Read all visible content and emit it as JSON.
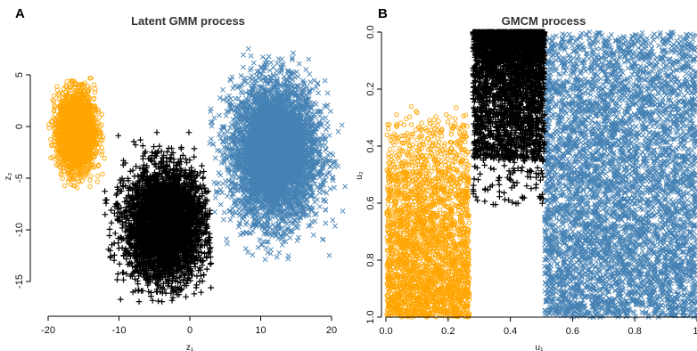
{
  "chart_data": [
    {
      "panel_letter": "A",
      "title": "Latent GMM process",
      "type": "scatter",
      "xlabel": "z₁",
      "ylabel": "z₂",
      "xlim": [
        -22,
        22
      ],
      "ylim": [
        -18,
        8
      ],
      "xticks": [
        -20,
        -10,
        0,
        10,
        20
      ],
      "xtick_labels": [
        "-20",
        "-10",
        "0",
        "10",
        "20"
      ],
      "yticks": [
        5,
        0,
        -5,
        -10,
        -15
      ],
      "ytick_labels": [
        "5",
        "0",
        "-5",
        "-10",
        "-15"
      ],
      "grid": false,
      "clusters": [
        {
          "marker": "circle",
          "color": "#FFA500",
          "mean": [
            -16,
            -0.5
          ],
          "sd": [
            1.3,
            1.9
          ],
          "approx_range_x": [
            -20,
            -12
          ],
          "approx_range_y": [
            -6,
            5
          ]
        },
        {
          "marker": "x",
          "color": "#4682B4",
          "mean": [
            12,
            -2.5
          ],
          "sd": [
            3.0,
            3.3
          ],
          "approx_range_x": [
            2,
            22
          ],
          "approx_range_y": [
            -13,
            8
          ]
        },
        {
          "marker": "plus",
          "color": "#000000",
          "mean": [
            -3.5,
            -9.5
          ],
          "sd": [
            2.8,
            2.7
          ],
          "approx_range_x": [
            -12,
            3
          ],
          "approx_range_y": [
            -17,
            0
          ]
        }
      ]
    },
    {
      "panel_letter": "B",
      "title": "GMCM process",
      "type": "scatter",
      "xlabel": "u₁",
      "ylabel": "u₂",
      "xlim": [
        0,
        1
      ],
      "ylim": [
        0,
        1
      ],
      "xticks": [
        0,
        0.2,
        0.4,
        0.6,
        0.8,
        1
      ],
      "xtick_labels": [
        "0.0",
        "0.2",
        "0.4",
        "0.6",
        "0.8",
        "1."
      ],
      "yticks": [
        0,
        0.2,
        0.4,
        0.6,
        0.8,
        1
      ],
      "ytick_labels": [
        "0.0",
        "0.2",
        "0.4",
        "0.6",
        "0.8",
        "1.0"
      ],
      "grid": false,
      "clusters": [
        {
          "marker": "circle",
          "color": "#FFA500",
          "approx_range_x": [
            0.0,
            0.27
          ],
          "approx_range_y": [
            0.25,
            1.0
          ]
        },
        {
          "marker": "x",
          "color": "#4682B4",
          "approx_range_x": [
            0.5,
            1.0
          ],
          "approx_range_y": [
            0.0,
            1.0
          ]
        },
        {
          "marker": "plus",
          "color": "#000000",
          "approx_range_x": [
            0.28,
            0.51
          ],
          "approx_range_y": [
            0.0,
            0.61
          ]
        }
      ]
    }
  ]
}
